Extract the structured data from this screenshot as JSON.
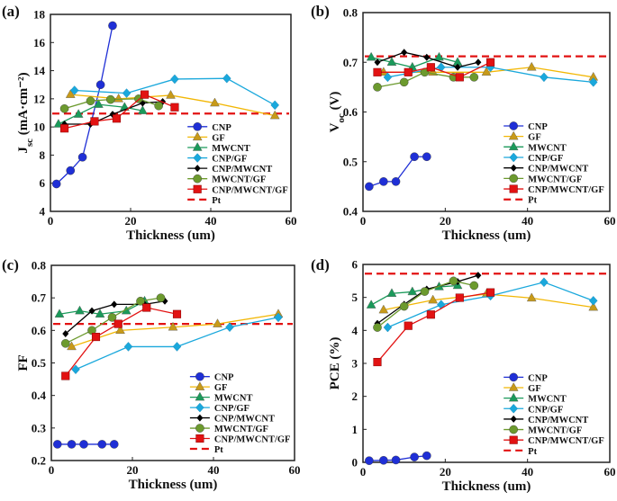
{
  "colors": {
    "CNP": "#1f2fd6",
    "GF": "#f2b705",
    "MWCNT": "#1a9a5a",
    "CNP/GF": "#1aa8dc",
    "CNP/MWCNT": "#000000",
    "MWCNT/GF": "#6c9a2e",
    "CNP/MWCNT/GF": "#e21212",
    "Pt": "#e21212"
  },
  "markers": {
    "CNP": "circle",
    "GF": "triangle",
    "MWCNT": "triangle",
    "CNP/GF": "diamond",
    "CNP/MWCNT": "small-diamond",
    "MWCNT/GF": "circle",
    "CNP/MWCNT/GF": "square",
    "Pt": "dashed-line"
  },
  "chart_data": [
    {
      "type": "line",
      "panel": "(a)",
      "xlabel": "Thickness (um)",
      "ylabel": "J",
      "ylabel_sub": "sc",
      "ylabel_unit": " (mA·cm⁻²)",
      "xlim": [
        0,
        60
      ],
      "ylim": [
        4,
        18
      ],
      "xticks": [
        0,
        20,
        40,
        60
      ],
      "yticks": [
        4,
        6,
        8,
        10,
        12,
        14,
        16,
        18
      ],
      "legend": "bottom-right",
      "grid": false,
      "series": [
        {
          "name": "CNP",
          "x": [
            1.5,
            5,
            8,
            12.5,
            15.5
          ],
          "y": [
            5.95,
            6.9,
            7.85,
            13.0,
            17.2
          ]
        },
        {
          "name": "GF",
          "x": [
            5,
            17,
            30,
            41,
            56
          ],
          "y": [
            12.3,
            12.0,
            12.25,
            11.7,
            10.8
          ]
        },
        {
          "name": "MWCNT",
          "x": [
            2,
            7,
            12,
            18.5,
            23
          ],
          "y": [
            10.2,
            10.9,
            11.6,
            11.4,
            11.15
          ]
        },
        {
          "name": "CNP/GF",
          "x": [
            6,
            19,
            31,
            44,
            56
          ],
          "y": [
            12.6,
            12.4,
            13.4,
            13.45,
            11.55
          ]
        },
        {
          "name": "CNP/MWCNT",
          "x": [
            3.5,
            10,
            15.5,
            23,
            28
          ],
          "y": [
            10.2,
            10.2,
            10.9,
            11.7,
            11.8
          ]
        },
        {
          "name": "MWCNT/GF",
          "x": [
            3.5,
            10,
            15,
            22,
            27
          ],
          "y": [
            11.3,
            11.85,
            11.95,
            12.0,
            11.5
          ]
        },
        {
          "name": "CNP/MWCNT/GF",
          "x": [
            3.5,
            11,
            16.5,
            23.5,
            31
          ],
          "y": [
            9.9,
            10.4,
            10.6,
            12.3,
            11.4
          ]
        }
      ],
      "reference": {
        "name": "Pt",
        "y": 10.95
      }
    },
    {
      "type": "line",
      "panel": "(b)",
      "xlabel": "Thickness (um)",
      "ylabel": "V",
      "ylabel_sub": "oc",
      "ylabel_unit": " (V)",
      "xlim": [
        0,
        60
      ],
      "ylim": [
        0.4,
        0.8
      ],
      "xticks": [
        0,
        20,
        40,
        60
      ],
      "yticks": [
        0.4,
        0.5,
        0.6,
        0.7,
        0.8
      ],
      "legend": "bottom-right",
      "grid": false,
      "series": [
        {
          "name": "CNP",
          "x": [
            1.5,
            5,
            8,
            12.5,
            15.5
          ],
          "y": [
            0.45,
            0.46,
            0.46,
            0.51,
            0.51
          ]
        },
        {
          "name": "GF",
          "x": [
            5,
            17,
            30,
            41,
            56
          ],
          "y": [
            0.68,
            0.68,
            0.68,
            0.69,
            0.67
          ]
        },
        {
          "name": "MWCNT",
          "x": [
            2,
            7,
            12,
            18.5,
            23
          ],
          "y": [
            0.71,
            0.7,
            0.69,
            0.71,
            0.7
          ]
        },
        {
          "name": "CNP/GF",
          "x": [
            6,
            19,
            31,
            44,
            56
          ],
          "y": [
            0.67,
            0.69,
            0.69,
            0.67,
            0.66
          ]
        },
        {
          "name": "CNP/MWCNT",
          "x": [
            3.5,
            10,
            15.5,
            23,
            28
          ],
          "y": [
            0.7,
            0.72,
            0.71,
            0.69,
            0.7
          ]
        },
        {
          "name": "MWCNT/GF",
          "x": [
            3.5,
            10,
            15,
            22,
            27
          ],
          "y": [
            0.65,
            0.66,
            0.68,
            0.67,
            0.67
          ]
        },
        {
          "name": "CNP/MWCNT/GF",
          "x": [
            3.5,
            11,
            16.5,
            23.5,
            31
          ],
          "y": [
            0.68,
            0.68,
            0.69,
            0.67,
            0.7
          ]
        }
      ],
      "reference": {
        "name": "Pt",
        "y": 0.712
      }
    },
    {
      "type": "line",
      "panel": "(c)",
      "xlabel": "Thickness (um)",
      "ylabel": "FF",
      "ylabel_sub": "",
      "ylabel_unit": "",
      "xlim": [
        0,
        60
      ],
      "ylim": [
        0.2,
        0.8
      ],
      "xticks": [
        0,
        20,
        40,
        60
      ],
      "yticks": [
        0.2,
        0.3,
        0.4,
        0.5,
        0.6,
        0.7,
        0.8
      ],
      "legend": "bottom-right",
      "grid": false,
      "series": [
        {
          "name": "CNP",
          "x": [
            1.5,
            5,
            8,
            12.5,
            15.5
          ],
          "y": [
            0.25,
            0.25,
            0.25,
            0.25,
            0.25
          ]
        },
        {
          "name": "GF",
          "x": [
            5,
            17,
            30,
            41,
            56
          ],
          "y": [
            0.55,
            0.6,
            0.61,
            0.62,
            0.65
          ]
        },
        {
          "name": "MWCNT",
          "x": [
            2,
            7,
            12,
            18.5,
            23
          ],
          "y": [
            0.65,
            0.66,
            0.65,
            0.66,
            0.69
          ]
        },
        {
          "name": "CNP/GF",
          "x": [
            6,
            19,
            31,
            44,
            56
          ],
          "y": [
            0.48,
            0.55,
            0.55,
            0.61,
            0.64
          ]
        },
        {
          "name": "CNP/MWCNT",
          "x": [
            3.5,
            10,
            15.5,
            23,
            28
          ],
          "y": [
            0.59,
            0.66,
            0.68,
            0.68,
            0.69
          ]
        },
        {
          "name": "MWCNT/GF",
          "x": [
            3.5,
            10,
            15,
            22,
            27
          ],
          "y": [
            0.56,
            0.6,
            0.64,
            0.69,
            0.7
          ]
        },
        {
          "name": "CNP/MWCNT/GF",
          "x": [
            3.5,
            11,
            16.5,
            23.5,
            31
          ],
          "y": [
            0.46,
            0.58,
            0.62,
            0.67,
            0.65
          ]
        }
      ],
      "reference": {
        "name": "Pt",
        "y": 0.62
      }
    },
    {
      "type": "line",
      "panel": "(d)",
      "xlabel": "Thickness (um)",
      "ylabel": "PCE (%)",
      "ylabel_sub": "",
      "ylabel_unit": "",
      "xlim": [
        0,
        60
      ],
      "ylim": [
        0,
        6
      ],
      "xticks": [
        0,
        20,
        40,
        60
      ],
      "yticks": [
        0,
        1,
        2,
        3,
        4,
        5,
        6
      ],
      "legend": "bottom-right",
      "grid": false,
      "series": [
        {
          "name": "CNP",
          "x": [
            1.5,
            5,
            8,
            12.5,
            15.5
          ],
          "y": [
            0.05,
            0.06,
            0.07,
            0.16,
            0.2
          ]
        },
        {
          "name": "GF",
          "x": [
            5,
            17,
            30,
            41,
            56
          ],
          "y": [
            4.62,
            4.92,
            5.1,
            4.98,
            4.7
          ]
        },
        {
          "name": "MWCNT",
          "x": [
            2,
            7,
            12,
            18.5,
            23
          ],
          "y": [
            4.77,
            5.12,
            5.17,
            5.32,
            5.36
          ]
        },
        {
          "name": "CNP/GF",
          "x": [
            6,
            19,
            31,
            44,
            56
          ],
          "y": [
            4.09,
            4.78,
            5.05,
            5.46,
            4.9
          ]
        },
        {
          "name": "CNP/MWCNT",
          "x": [
            3.5,
            10,
            15.5,
            23,
            28
          ],
          "y": [
            4.21,
            4.79,
            5.25,
            5.48,
            5.67
          ]
        },
        {
          "name": "MWCNT/GF",
          "x": [
            3.5,
            10,
            15,
            22,
            27
          ],
          "y": [
            4.09,
            4.73,
            5.18,
            5.5,
            5.36
          ]
        },
        {
          "name": "CNP/MWCNT/GF",
          "x": [
            3.5,
            11,
            16.5,
            23.5,
            31
          ],
          "y": [
            3.04,
            4.14,
            4.48,
            4.99,
            5.15
          ]
        }
      ],
      "reference": {
        "name": "Pt",
        "y": 5.72
      }
    }
  ]
}
